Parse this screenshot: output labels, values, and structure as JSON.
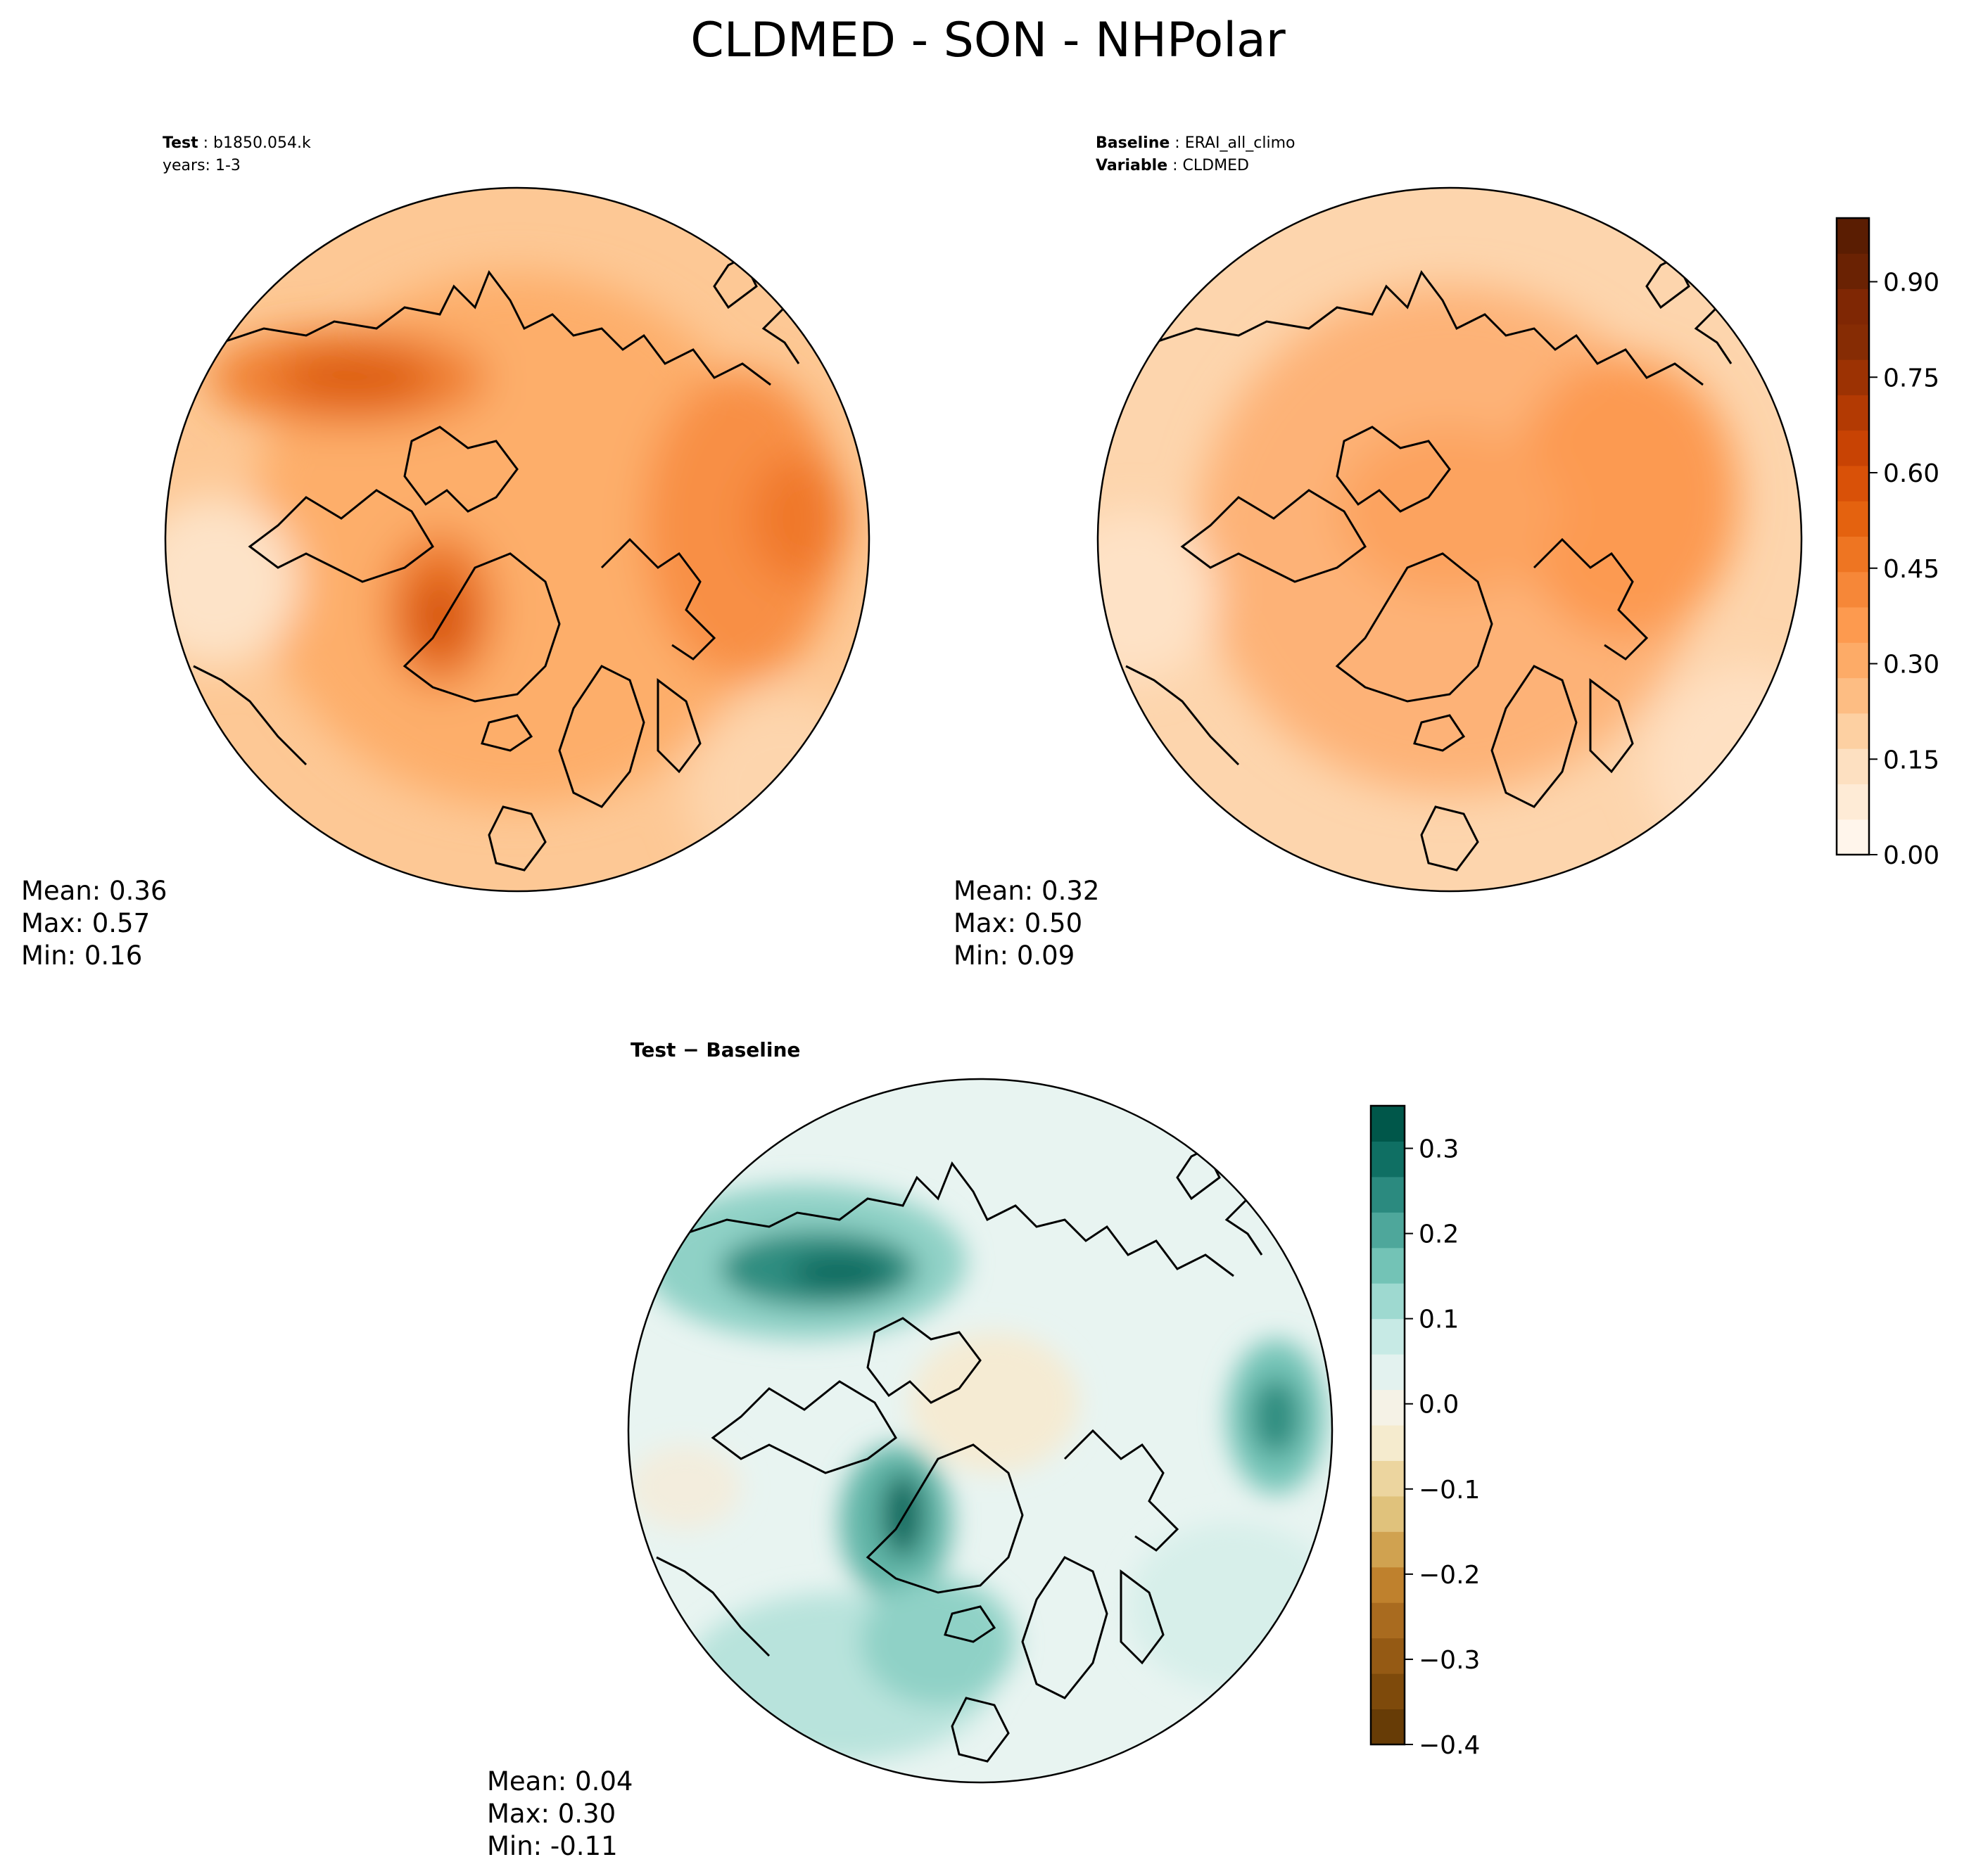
{
  "title": "CLDMED - SON - NHPolar",
  "panels": [
    {
      "id": "test",
      "label_key": "Test",
      "label_value": "b1850.054.k",
      "sub_line": "years: 1-3",
      "stats": {
        "mean": "Mean:  0.36",
        "max": "Max:  0.57",
        "min": "Min:  0.16"
      }
    },
    {
      "id": "baseline",
      "label_key": "Baseline",
      "label_value": "ERAI_all_climo",
      "sub_key": "Variable",
      "sub_value": "CLDMED",
      "stats": {
        "mean": "Mean:  0.32",
        "max": "Max:  0.50",
        "min": "Min:  0.09"
      }
    },
    {
      "id": "diff",
      "title": "Test − Baseline",
      "stats": {
        "mean": "Mean:  0.04",
        "max": "Max:  0.30",
        "min": "Min: -0.11"
      }
    }
  ],
  "colorbars": {
    "main": {
      "min": 0.0,
      "max": 1.0,
      "ticks": [
        {
          "v": 0.0,
          "label": "0.00"
        },
        {
          "v": 0.15,
          "label": "0.15"
        },
        {
          "v": 0.3,
          "label": "0.30"
        },
        {
          "v": 0.45,
          "label": "0.45"
        },
        {
          "v": 0.6,
          "label": "0.60"
        },
        {
          "v": 0.75,
          "label": "0.75"
        },
        {
          "v": 0.9,
          "label": "0.90"
        }
      ],
      "colors": [
        "#fff5eb",
        "#feebd6",
        "#fde0c1",
        "#fdd0a2",
        "#fdbd83",
        "#fdab67",
        "#fd9a4f",
        "#f68738",
        "#ee7522",
        "#e4620f",
        "#d95108",
        "#c84304",
        "#b33a03",
        "#9c3203",
        "#862c04",
        "#7f2704",
        "#6a2203",
        "#5a1d02"
      ]
    },
    "diff": {
      "min": -0.4,
      "max": 0.35,
      "ticks": [
        {
          "v": -0.4,
          "label": "−0.4"
        },
        {
          "v": -0.3,
          "label": "−0.3"
        },
        {
          "v": -0.2,
          "label": "−0.2"
        },
        {
          "v": -0.1,
          "label": "−0.1"
        },
        {
          "v": 0.0,
          "label": "0.0"
        },
        {
          "v": 0.1,
          "label": "0.1"
        },
        {
          "v": 0.2,
          "label": "0.2"
        },
        {
          "v": 0.3,
          "label": "0.3"
        }
      ],
      "colors": [
        "#673c06",
        "#7e4a0b",
        "#955a14",
        "#a96b1f",
        "#bf812d",
        "#d0a250",
        "#e0c27c",
        "#ecd59f",
        "#f5ebce",
        "#f5f2e6",
        "#e3f2ef",
        "#c7eae5",
        "#9ed9d0",
        "#73c3b6",
        "#4ea79b",
        "#2b8a7f",
        "#0f6f63",
        "#00574a"
      ]
    }
  },
  "chart_data": [
    {
      "type": "heatmap",
      "title": "Test: b1850.054.k",
      "variable": "CLDMED",
      "season": "SON",
      "region": "NHPolar",
      "projection": "north polar stereographic",
      "mean": 0.36,
      "max": 0.57,
      "min": 0.16,
      "cmap": "Oranges",
      "vmin": 0.0,
      "vmax": 1.0
    },
    {
      "type": "heatmap",
      "title": "Baseline: ERAI_all_climo",
      "variable": "CLDMED",
      "season": "SON",
      "region": "NHPolar",
      "projection": "north polar stereographic",
      "mean": 0.32,
      "max": 0.5,
      "min": 0.09,
      "cmap": "Oranges",
      "vmin": 0.0,
      "vmax": 1.0
    },
    {
      "type": "heatmap",
      "title": "Test − Baseline",
      "variable": "CLDMED",
      "season": "SON",
      "region": "NHPolar",
      "projection": "north polar stereographic",
      "mean": 0.04,
      "max": 0.3,
      "min": -0.11,
      "cmap": "BrBG",
      "vmin": -0.4,
      "vmax": 0.35
    }
  ]
}
